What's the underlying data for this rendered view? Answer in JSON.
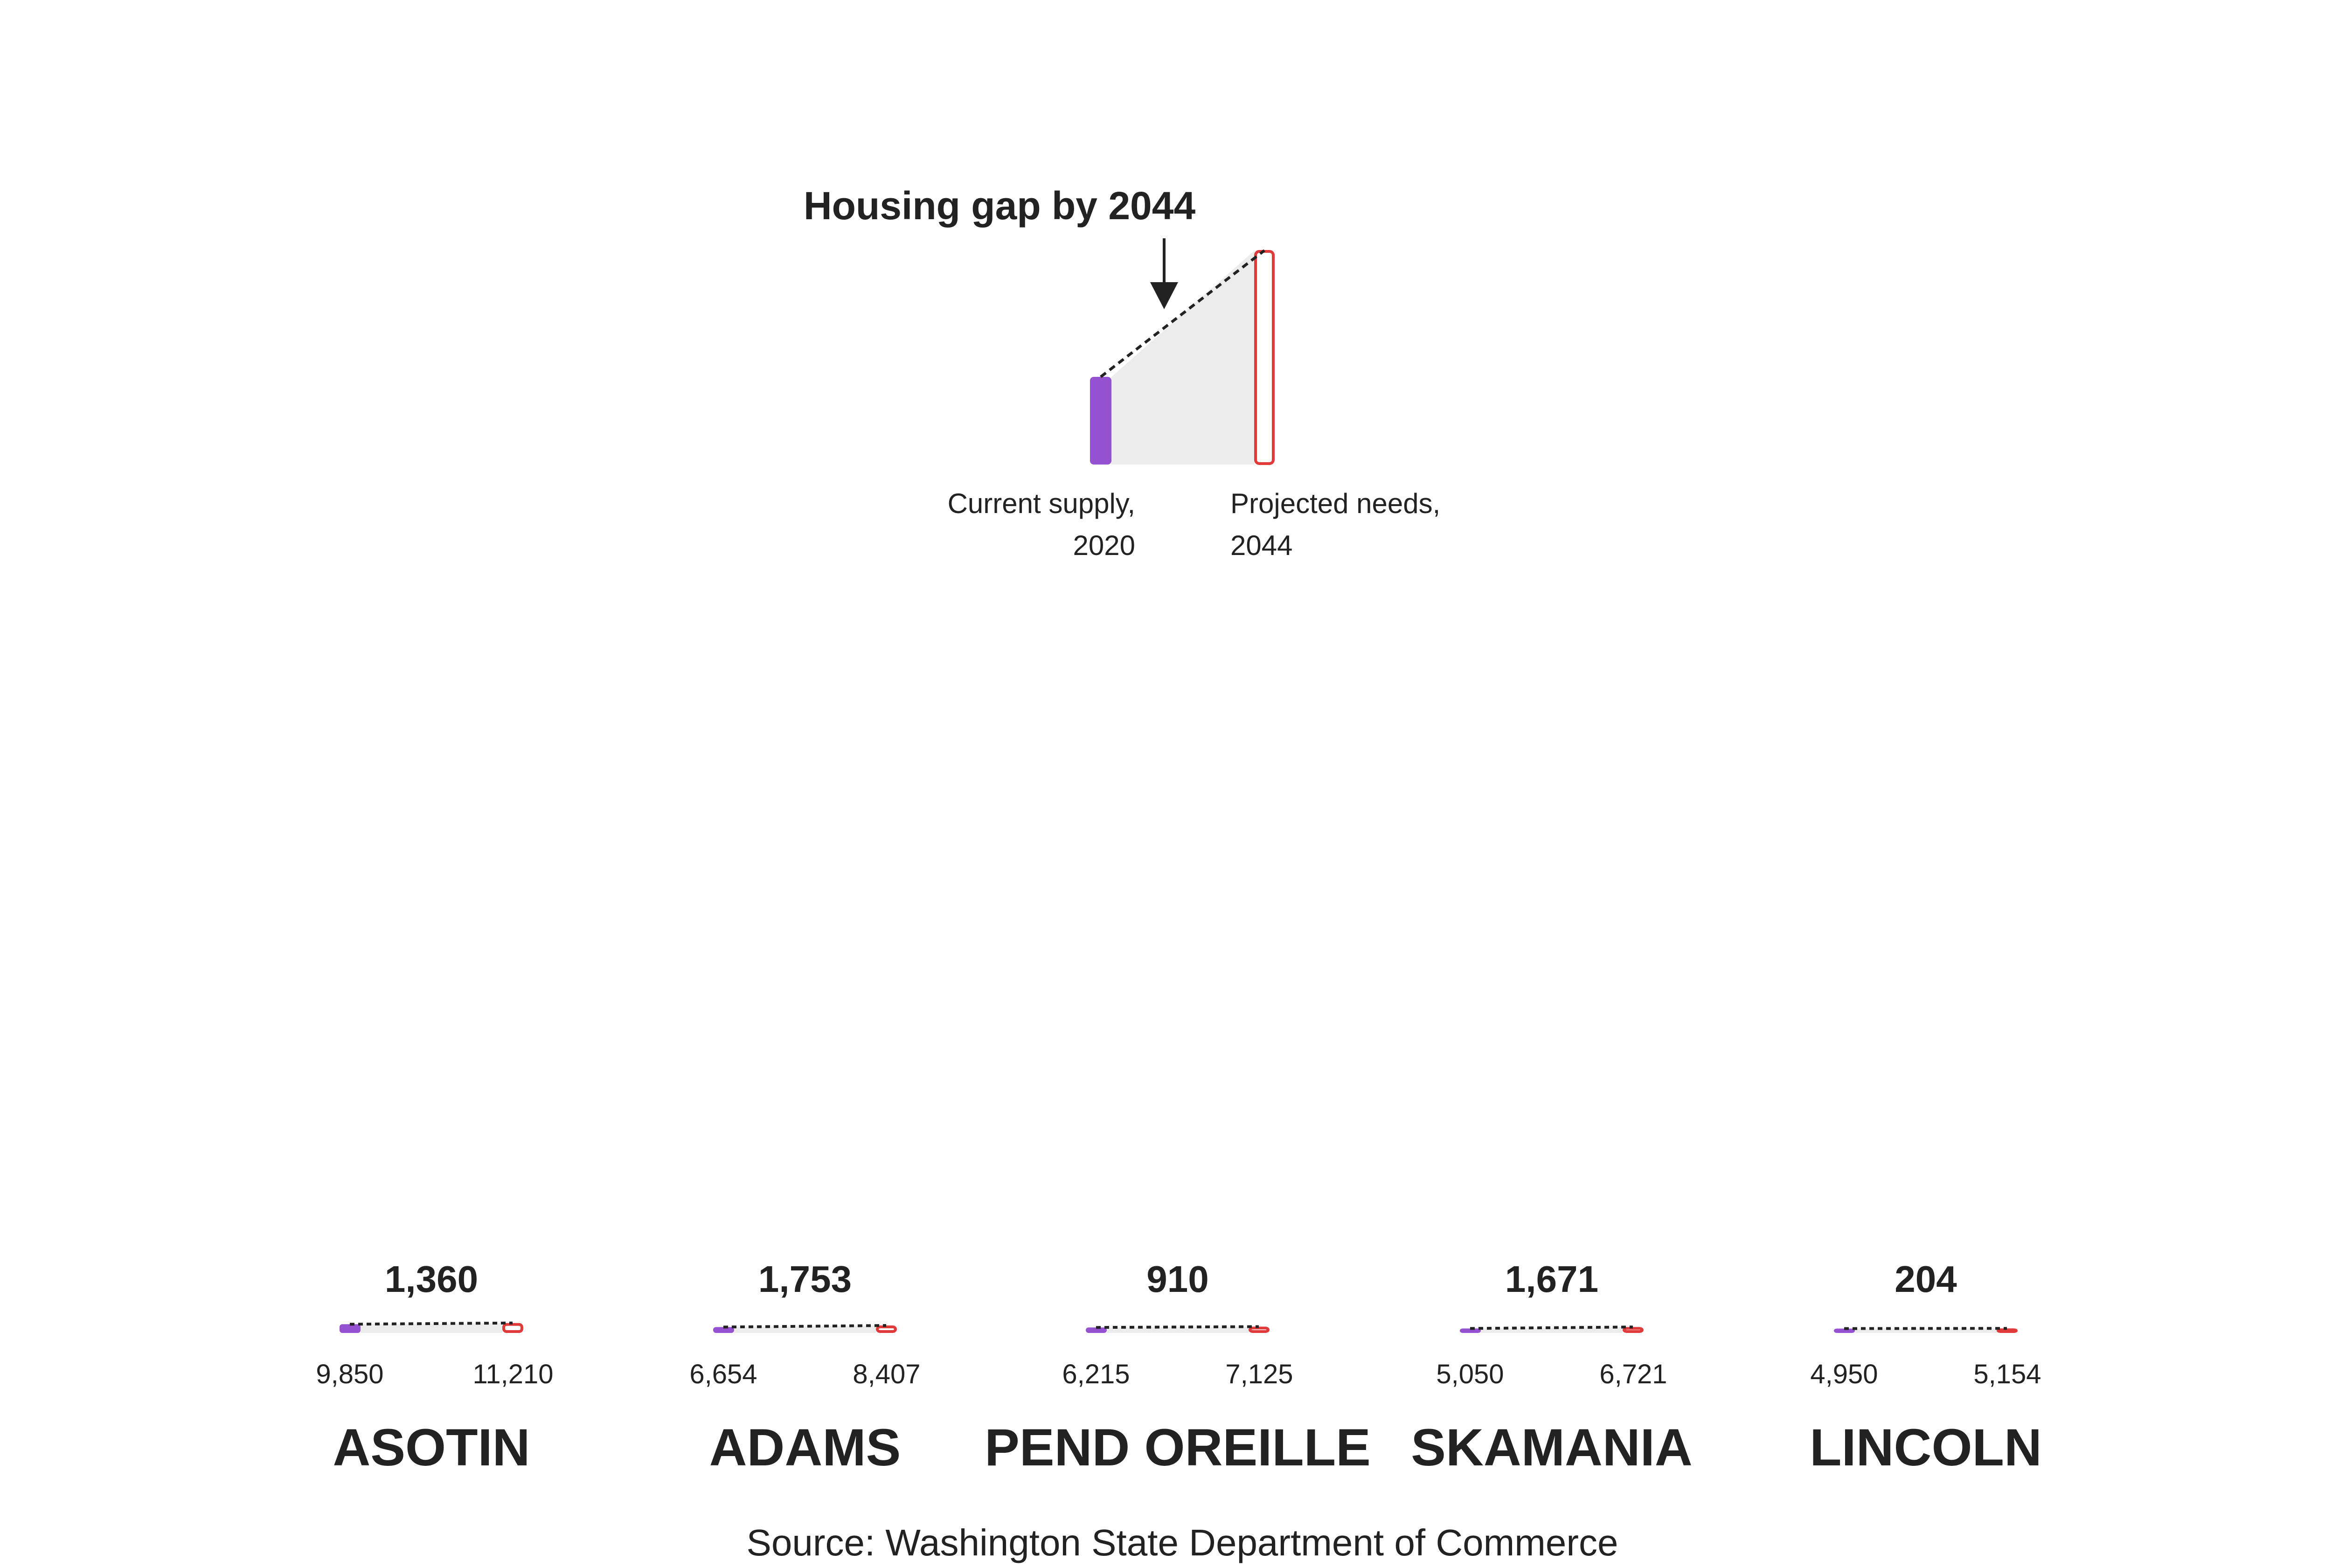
{
  "chart_data": {
    "type": "bar",
    "title": "",
    "legend": {
      "title": "Housing gap by 2044",
      "current_label_line1": "Current supply,",
      "current_label_line2": "2020",
      "projected_label_line1": "Projected needs,",
      "projected_label_line2": "2044"
    },
    "categories": [
      "ASOTIN",
      "ADAMS",
      "PEND OREILLE",
      "SKAMANIA",
      "LINCOLN"
    ],
    "series": [
      {
        "name": "Current supply, 2020",
        "values": [
          9850,
          6654,
          6215,
          5050,
          4950
        ],
        "labels": [
          "9,850",
          "6,654",
          "6,215",
          "5,050",
          "4,950"
        ]
      },
      {
        "name": "Projected needs, 2044",
        "values": [
          11210,
          8407,
          7125,
          6721,
          5154
        ],
        "labels": [
          "11,210",
          "8,407",
          "7,125",
          "6,721",
          "5,154"
        ]
      }
    ],
    "gap": {
      "values": [
        1360,
        1753,
        910,
        1671,
        204
      ],
      "labels": [
        "1,360",
        "1,753",
        "910",
        "1,671",
        "204"
      ]
    },
    "colors": {
      "current": "#9452d0",
      "projected": "#e03a3a",
      "gap_fill": "#ececec",
      "connector": "#222222"
    },
    "source": "Source: Washington State Department of Commerce"
  }
}
